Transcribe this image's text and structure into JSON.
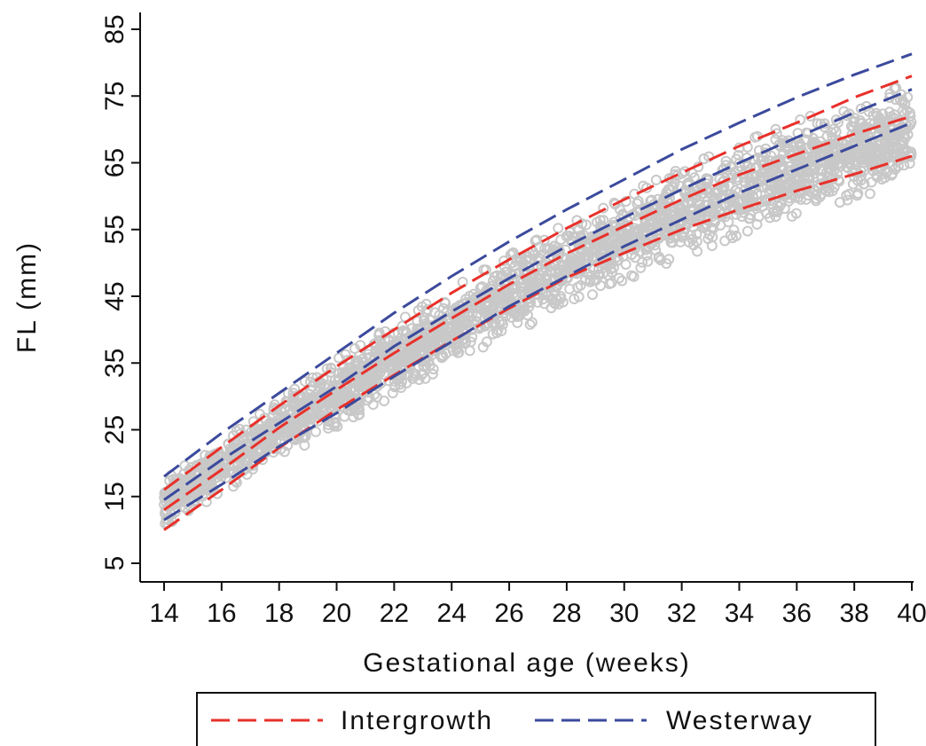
{
  "chart_data": {
    "type": "scatter",
    "title": "",
    "xlabel": "Gestational age (weeks)",
    "ylabel": "FL (mm)",
    "xlim": [
      14,
      40
    ],
    "ylim": [
      5,
      85
    ],
    "x_ticks": [
      "14",
      "16",
      "18",
      "20",
      "22",
      "24",
      "26",
      "28",
      "30",
      "32",
      "34",
      "36",
      "38",
      "40"
    ],
    "y_ticks": [
      "5",
      "15",
      "25",
      "35",
      "45",
      "55",
      "65",
      "75",
      "85"
    ],
    "grid": false,
    "legend_position": "bottom",
    "scatter_points": {
      "color": "#c8c8c8",
      "marker": "open-circle",
      "median_curve": [
        [
          14,
          14
        ],
        [
          16,
          19.5
        ],
        [
          18,
          25
        ],
        [
          20,
          30.5
        ],
        [
          22,
          35.5
        ],
        [
          24,
          40.5
        ],
        [
          26,
          45.2
        ],
        [
          28,
          49.7
        ],
        [
          30,
          53.8
        ],
        [
          32,
          57.5
        ],
        [
          34,
          61
        ],
        [
          36,
          64.2
        ],
        [
          38,
          67
        ],
        [
          40,
          69.5
        ]
      ],
      "spread_curve": [
        [
          14,
          3
        ],
        [
          20,
          4.4
        ],
        [
          26,
          5.2
        ],
        [
          32,
          5.8
        ],
        [
          40,
          6.5
        ]
      ]
    },
    "series": [
      {
        "name": "Intergrowth",
        "color": "#e8302a",
        "style": "dashed",
        "curves": [
          {
            "x": [
              14,
              16,
              18,
              20,
              22,
              24,
              26,
              28,
              30,
              32,
              34,
              36,
              38,
              40
            ],
            "y": [
              10,
              16,
              22.3,
              28,
              33.2,
              38.3,
              43.2,
              47.8,
              51.5,
              55,
              58,
              60.8,
              63.3,
              66
            ]
          },
          {
            "x": [
              14,
              16,
              18,
              20,
              22,
              24,
              26,
              28,
              30,
              32,
              34,
              36,
              38,
              40
            ],
            "y": [
              13,
              19,
              25.3,
              31,
              36.5,
              41.7,
              46.8,
              51.4,
              55.5,
              59.5,
              63.2,
              66.3,
              69.3,
              72
            ]
          },
          {
            "x": [
              14,
              16,
              18,
              20,
              22,
              24,
              26,
              28,
              30,
              32,
              34,
              36,
              38,
              40
            ],
            "y": [
              16,
              22.4,
              28.6,
              34.5,
              40,
              45.5,
              50.5,
              55.2,
              59.5,
              63.5,
              67.5,
              71,
              74.8,
              78
            ]
          }
        ]
      },
      {
        "name": "Westerway",
        "color": "#3b4a9c",
        "style": "dashed",
        "curves": [
          {
            "x": [
              14,
              16,
              18,
              20,
              22,
              24,
              26,
              28,
              30,
              32,
              34,
              36,
              38,
              40
            ],
            "y": [
              11.5,
              16.8,
              22.5,
              27.5,
              33,
              38.2,
              43.5,
              48,
              52.5,
              56.5,
              60.5,
              64,
              67.5,
              71
            ]
          },
          {
            "x": [
              14,
              16,
              18,
              20,
              22,
              24,
              26,
              28,
              30,
              32,
              34,
              36,
              38,
              40
            ],
            "y": [
              14.5,
              20.5,
              26,
              31.5,
              37.5,
              42.7,
              47.7,
              52.5,
              56.8,
              61,
              65,
              68.8,
              72.5,
              76
            ]
          },
          {
            "x": [
              14,
              16,
              18,
              20,
              22,
              24,
              26,
              28,
              30,
              32,
              34,
              36,
              38,
              40
            ],
            "y": [
              18,
              24.5,
              30.5,
              36.5,
              42.5,
              48,
              53.2,
              58,
              62.5,
              67,
              71,
              74.8,
              78.2,
              81.3
            ]
          }
        ]
      }
    ]
  }
}
